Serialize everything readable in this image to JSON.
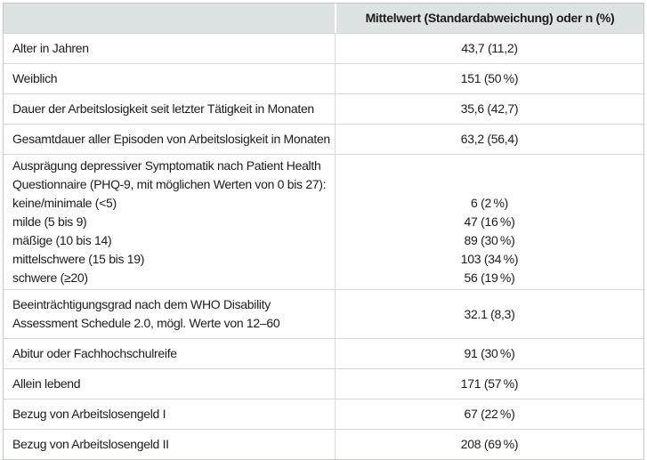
{
  "colors": {
    "header_bg": "#dde3e2",
    "grid_line": "#d5d8d5",
    "outer_border": "#c3c8c5",
    "text": "#1c1c1c"
  },
  "table": {
    "header": {
      "label": "",
      "value": "Mittelwert (Standardabweichung) oder n (%)"
    },
    "rows": [
      {
        "label": "Alter in Jahren",
        "value": "43,7 (11,2)"
      },
      {
        "label": "Weiblich",
        "value": "151 (50 %)"
      },
      {
        "label": "Dauer der Arbeitslosigkeit seit letzter Tätigkeit in Monaten",
        "value": "35,6 (42,7)"
      },
      {
        "label": "Gesamtdauer aller Episoden von Arbeitslosigkeit in Monaten",
        "value": "63,2 (56,4)"
      },
      {
        "lines": [
          {
            "label": "Ausprägung depressiver Symptomatik nach Patient Health",
            "value": ""
          },
          {
            "label": "Questionnaire (PHQ-9, mit möglichen Werten von 0 bis 27):",
            "value": ""
          },
          {
            "label": "keine/minimale (<5)",
            "value": "6 (2 %)"
          },
          {
            "label": "milde (5 bis 9)",
            "value": "47 (16 %)"
          },
          {
            "label": "mäßige (10 bis 14)",
            "value": "89 (30 %)"
          },
          {
            "label": "mittelschwere (15 bis 19)",
            "value": "103 (34 %)"
          },
          {
            "label": "schwere (≥20)",
            "value": "56 (19 %)"
          }
        ]
      },
      {
        "label_lines": [
          "Beeinträchtigungsgrad nach dem WHO Disability",
          "Assessment Schedule 2.0, mögl. Werte von 12–60"
        ],
        "value": "32.1 (8,3)"
      },
      {
        "label": "Abitur oder Fachhochschulreife",
        "value": "91 (30 %)"
      },
      {
        "label": "Allein lebend",
        "value": "171 (57 %)"
      },
      {
        "label": "Bezug von Arbeitslosengeld I",
        "value": "67 (22 %)"
      },
      {
        "label": "Bezug von Arbeitslosengeld II",
        "value": "208 (69 %)"
      }
    ]
  }
}
